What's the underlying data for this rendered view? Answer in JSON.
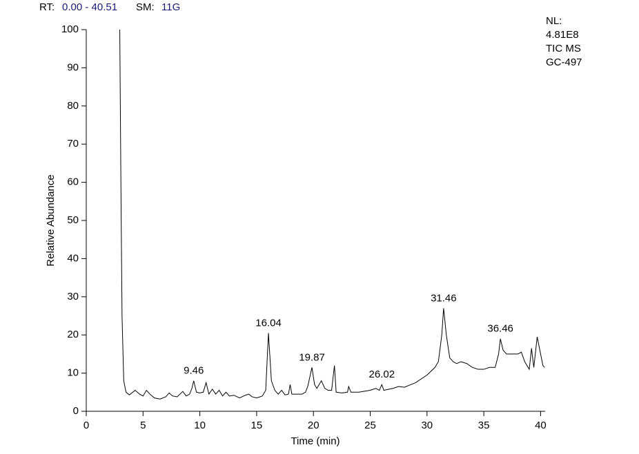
{
  "chart_data": {
    "type": "line",
    "header": {
      "rt_label": "RT:",
      "rt_range": "0.00 - 40.51",
      "sm_label": "SM:",
      "sm_value": "11G"
    },
    "info": [
      "NL:",
      "4.81E8",
      "TIC  MS",
      "GC-497"
    ],
    "x_label": "Time (min)",
    "y_label": "Relative Abundance",
    "xlim": [
      0,
      40.4
    ],
    "ylim": [
      0,
      100
    ],
    "xticks": [
      0,
      5,
      10,
      15,
      20,
      25,
      30,
      35,
      40
    ],
    "yticks": [
      0,
      10,
      20,
      30,
      40,
      50,
      60,
      70,
      80,
      90,
      100
    ],
    "color": "#000000",
    "peak_labels": [
      9.46,
      16.04,
      19.87,
      26.02,
      31.46,
      36.46
    ],
    "x": [
      2.95,
      3.05,
      3.15,
      3.3,
      3.5,
      3.8,
      4.3,
      4.7,
      5,
      5.3,
      5.6,
      6,
      6.5,
      7,
      7.3,
      7.6,
      8,
      8.5,
      8.8,
      9.1,
      9.3,
      9.46,
      9.7,
      10,
      10.3,
      10.55,
      10.8,
      11.1,
      11.4,
      11.7,
      12,
      12.3,
      12.6,
      13,
      13.5,
      14,
      14.3,
      14.6,
      15,
      15.5,
      15.8,
      16.04,
      16.3,
      16.6,
      16.9,
      17.2,
      17.5,
      17.8,
      17.95,
      18.1,
      18.5,
      19,
      19.3,
      19.5,
      19.87,
      20.1,
      20.3,
      20.7,
      21,
      21.3,
      21.6,
      21.85,
      22,
      22.5,
      23,
      23.1,
      23.3,
      24,
      25,
      25.5,
      25.8,
      26.02,
      26.2,
      27,
      27.5,
      28,
      29,
      30,
      30.7,
      31,
      31.3,
      31.46,
      31.7,
      32,
      32.3,
      32.6,
      33,
      33.5,
      34,
      34.5,
      35,
      35.5,
      36,
      36.3,
      36.46,
      36.7,
      37,
      37.5,
      38,
      38.3,
      38.6,
      39,
      39.2,
      39.4,
      39.7,
      40,
      40.2,
      40.36
    ],
    "values": [
      100,
      60,
      25,
      8,
      5,
      4.3,
      5.5,
      4.5,
      4,
      5.5,
      4.5,
      3.5,
      3.2,
      3.8,
      4.8,
      4,
      3.8,
      5.2,
      4,
      4.5,
      6,
      8,
      5,
      4.8,
      5,
      7.5,
      4.5,
      5.8,
      4.5,
      5.5,
      4,
      5,
      4,
      4.2,
      3.5,
      4.2,
      4.5,
      3.8,
      3.5,
      4,
      5.5,
      20.5,
      8,
      5.5,
      4.5,
      5.5,
      4.3,
      4.5,
      7,
      4.5,
      4.5,
      4.5,
      5,
      6.5,
      11.5,
      7,
      6,
      8,
      6,
      5.5,
      5.5,
      12,
      5,
      4.8,
      5,
      6.5,
      5,
      5,
      5.5,
      6,
      5.5,
      7,
      5.5,
      6,
      6.5,
      6.3,
      7.5,
      9.5,
      11.5,
      13,
      20,
      27,
      20,
      14,
      13,
      12.5,
      13,
      12.5,
      11.5,
      11,
      11,
      11.5,
      11.5,
      15,
      19,
      16,
      15,
      15,
      15,
      15.5,
      13,
      11,
      16.5,
      11.5,
      19.5,
      15,
      12,
      11.5
    ]
  }
}
